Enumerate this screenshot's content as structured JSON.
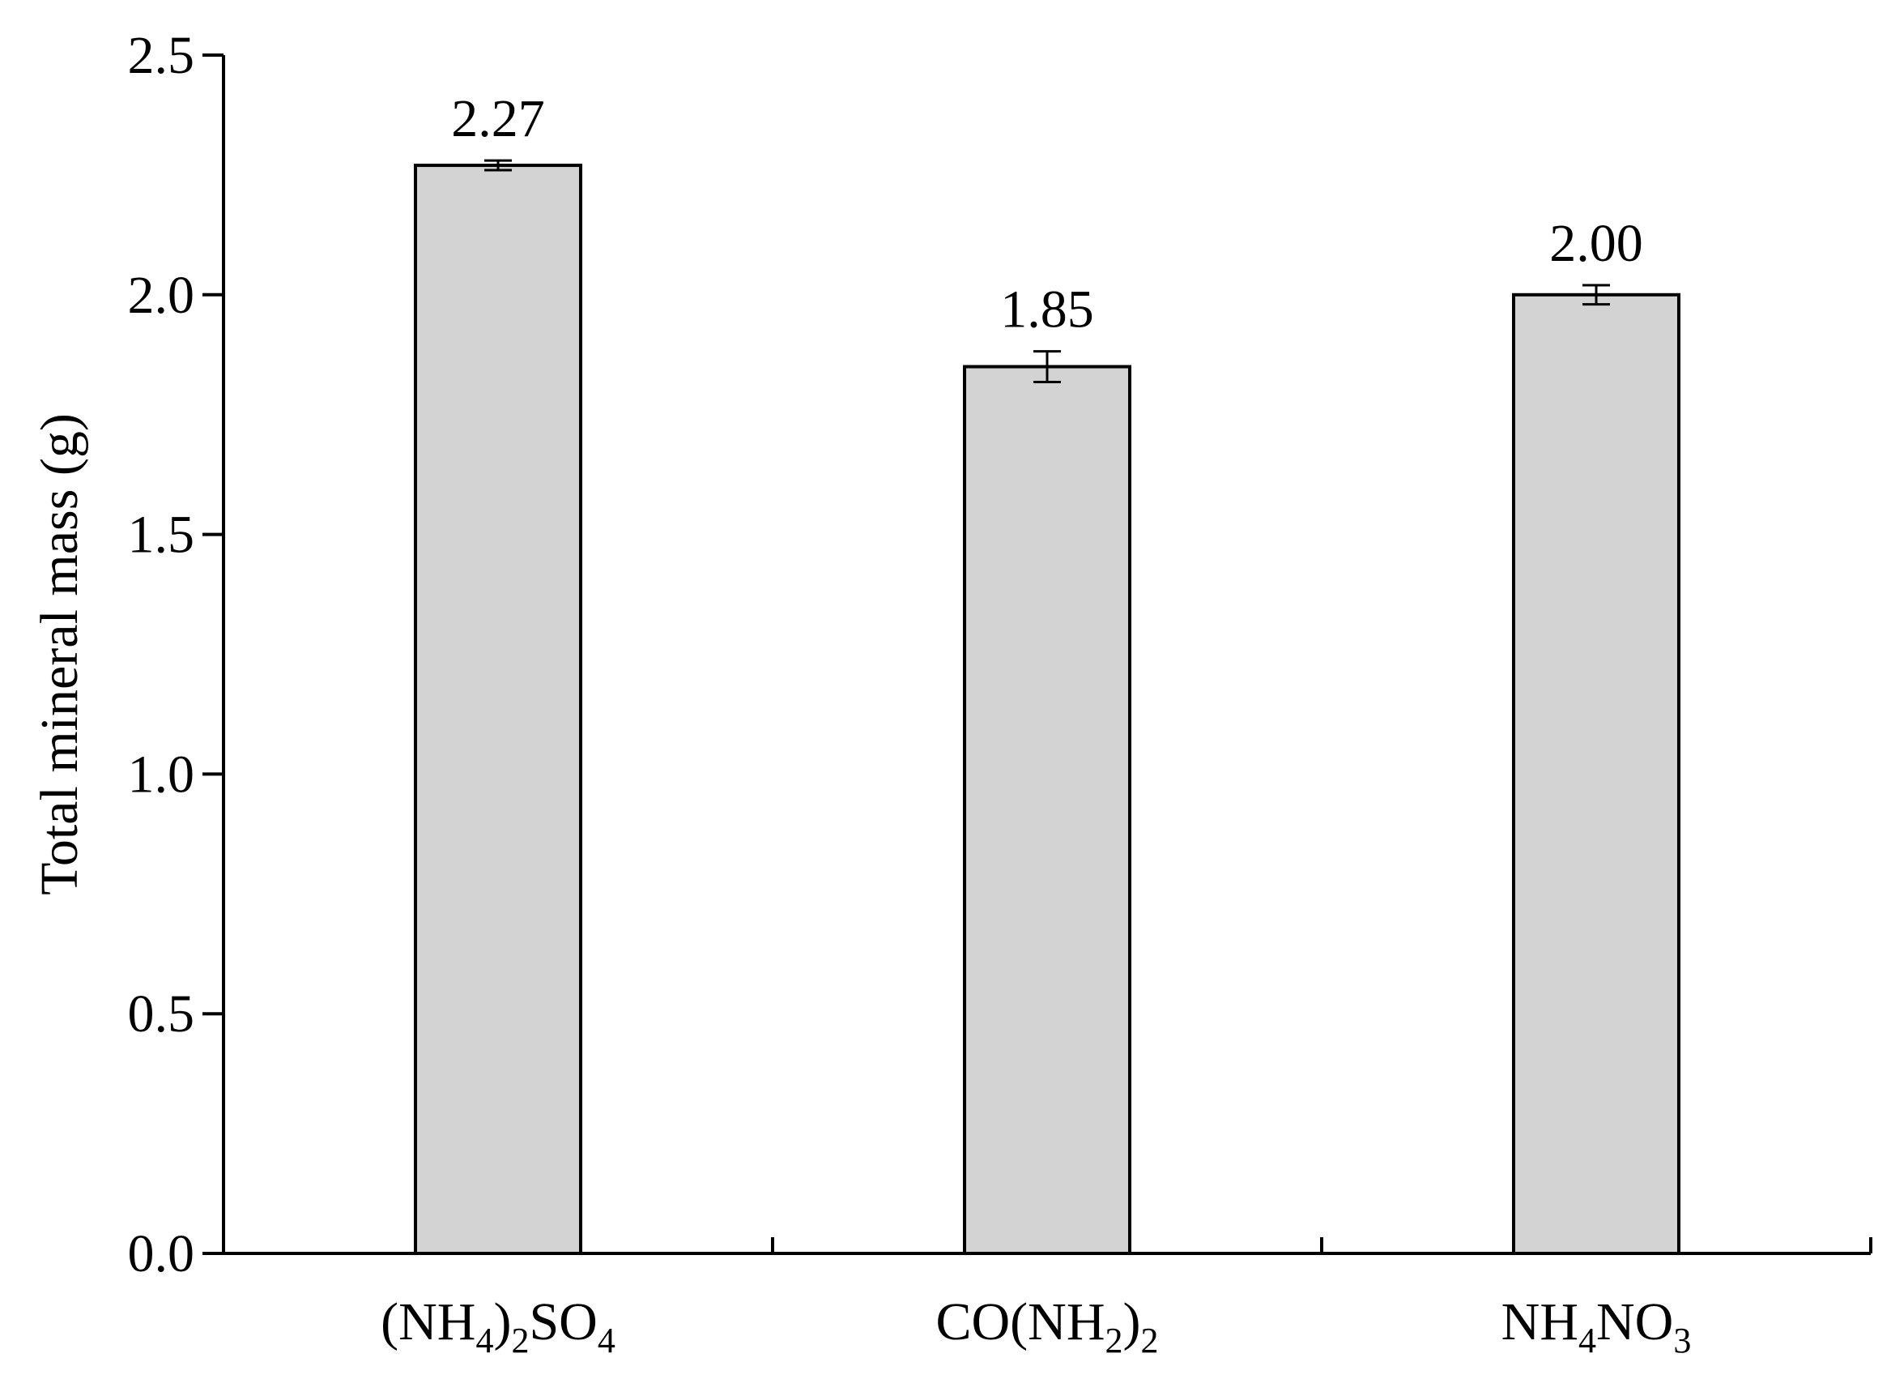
{
  "chart_data": {
    "type": "bar",
    "title": "",
    "xlabel": "",
    "ylabel": "Total mineral mass (g)",
    "ylim": [
      0,
      2.5
    ],
    "yticks": [
      "0.0",
      "0.5",
      "1.0",
      "1.5",
      "2.0",
      "2.5"
    ],
    "grid": false,
    "categories": [
      {
        "label": [
          {
            "t": "(NH"
          },
          {
            "t": "4",
            "sub": true
          },
          {
            "t": ")"
          },
          {
            "t": "2",
            "sub": true
          },
          {
            "t": "SO"
          },
          {
            "t": "4",
            "sub": true
          }
        ]
      },
      {
        "label": [
          {
            "t": "CO(NH"
          },
          {
            "t": "2",
            "sub": true
          },
          {
            "t": ")"
          },
          {
            "t": "2",
            "sub": true
          }
        ]
      },
      {
        "label": [
          {
            "t": "NH"
          },
          {
            "t": "4",
            "sub": true
          },
          {
            "t": "NO"
          },
          {
            "t": "3",
            "sub": true
          }
        ]
      }
    ],
    "values": [
      2.27,
      1.85,
      2.0
    ],
    "value_labels": [
      "2.27",
      "1.85",
      "2.00"
    ],
    "errors": [
      0.01,
      0.032,
      0.02
    ],
    "colors": {
      "bar_fill": "#d3d3d3",
      "bar_stroke": "#000000",
      "axis": "#000000"
    }
  }
}
